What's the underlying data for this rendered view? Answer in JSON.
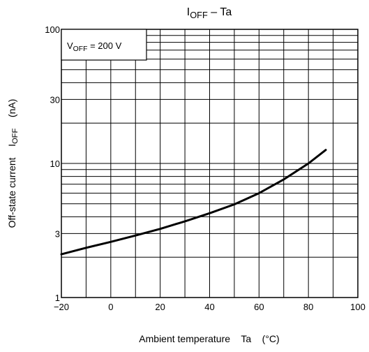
{
  "chart_data": {
    "type": "line",
    "title": {
      "main": "I",
      "sub": "OFF",
      "rest": " – Ta"
    },
    "xlabel": "Ambient temperature    Ta    (°C)",
    "ylabel": {
      "pre": "Off-state current    I",
      "sub": "OFF",
      "post": "    (nA)"
    },
    "legend": {
      "pre": "V",
      "sub": "OFF",
      "post": " = 200 V"
    },
    "y_scale": "log",
    "xlim": [
      -20,
      100
    ],
    "ylim": [
      1,
      100
    ],
    "x_ticks": [
      {
        "value": -20,
        "label": "−20"
      },
      {
        "value": 0,
        "label": "0"
      },
      {
        "value": 20,
        "label": "20"
      },
      {
        "value": 40,
        "label": "40"
      },
      {
        "value": 60,
        "label": "60"
      },
      {
        "value": 80,
        "label": "80"
      },
      {
        "value": 100,
        "label": "100"
      }
    ],
    "y_ticks": [
      {
        "value": 1,
        "label": "1"
      },
      {
        "value": 3,
        "label": "3"
      },
      {
        "value": 10,
        "label": "10"
      },
      {
        "value": 30,
        "label": "30"
      },
      {
        "value": 100,
        "label": "100"
      }
    ],
    "grid": true,
    "series": [
      {
        "x": [
          -20,
          -10,
          0,
          10,
          20,
          30,
          40,
          50,
          60,
          70,
          80,
          87
        ],
        "y": [
          2.1,
          2.35,
          2.6,
          2.9,
          3.25,
          3.7,
          4.25,
          4.95,
          6.0,
          7.6,
          10.0,
          12.6
        ]
      }
    ]
  }
}
